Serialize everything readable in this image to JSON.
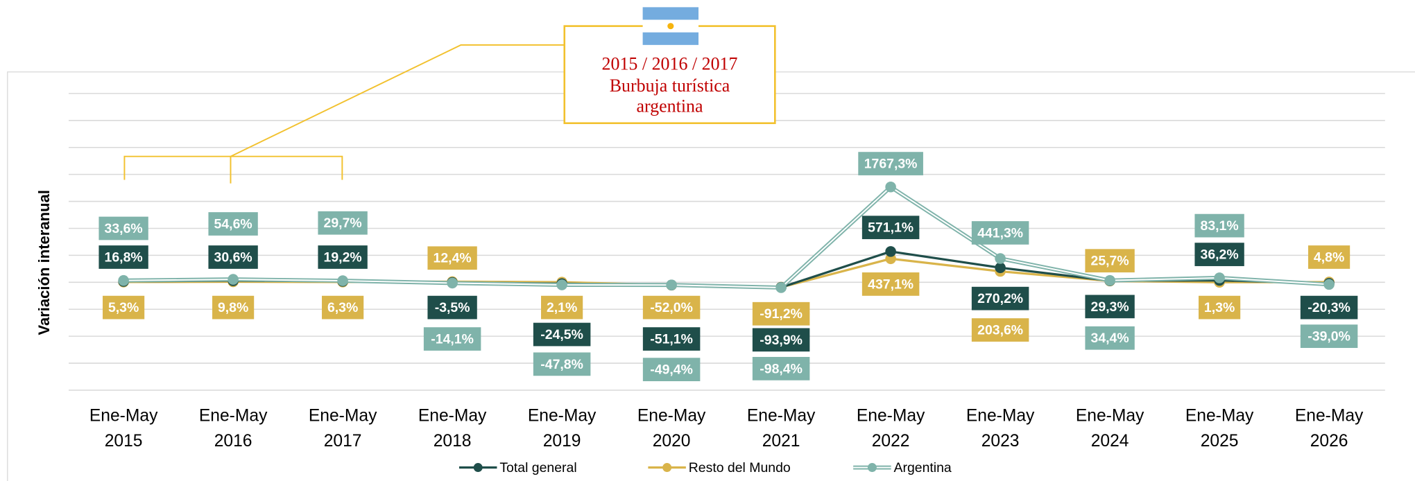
{
  "chart_data": {
    "type": "line",
    "y_label": "Variación interanual",
    "annotation": {
      "lines": [
        "2015 / 2016 / 2017",
        "Burbuja turística",
        "argentina"
      ]
    },
    "categories": [
      "Ene-May 2015",
      "Ene-May 2016",
      "Ene-May 2017",
      "Ene-May 2018",
      "Ene-May 2019",
      "Ene-May 2020",
      "Ene-May 2021",
      "Ene-May 2022",
      "Ene-May 2023",
      "Ene-May 2024",
      "Ene-May 2025",
      "Ene-May 2026"
    ],
    "series": [
      {
        "name": "Total general",
        "color": "#1f4e4a",
        "values": [
          16.8,
          30.6,
          19.2,
          -3.5,
          -24.5,
          -51.1,
          -93.9,
          571.1,
          270.2,
          29.3,
          36.2,
          -20.3
        ],
        "value_labels": [
          "16,8%",
          "30,6%",
          "19,2%",
          "-3,5%",
          "-24,5%",
          "-51,1%",
          "-93,9%",
          "571,1%",
          "270,2%",
          "29,3%",
          "36,2%",
          "-20,3%"
        ]
      },
      {
        "name": "Resto del Mundo",
        "color": "#d9b44a",
        "values": [
          5.3,
          9.8,
          6.3,
          12.4,
          2.1,
          -52.0,
          -91.2,
          437.1,
          203.6,
          25.7,
          1.3,
          4.8
        ],
        "value_labels": [
          "5,3%",
          "9,8%",
          "6,3%",
          "12,4%",
          "2,1%",
          "-52,0%",
          "-91,2%",
          "437,1%",
          "203,6%",
          "25,7%",
          "1,3%",
          "4,8%"
        ]
      },
      {
        "name": "Argentina",
        "color": "#7fb3aa",
        "values": [
          33.6,
          54.6,
          29.7,
          -14.1,
          -47.8,
          -49.4,
          -98.4,
          1767.3,
          441.3,
          34.4,
          83.1,
          -39.0
        ],
        "value_labels": [
          "33,6%",
          "54,6%",
          "29,7%",
          "-14,1%",
          "-47,8%",
          "-49,4%",
          "-98,4%",
          "1767,3%",
          "441,3%",
          "34,4%",
          "83,1%",
          "-39,0%"
        ]
      }
    ],
    "ylim": [
      -2000,
      3500
    ],
    "yticks": [
      -2000,
      -1500,
      -1000,
      -500,
      0,
      500,
      1000,
      1500,
      2000,
      2500,
      3000,
      3500
    ],
    "grid": true,
    "legend": "bottom"
  }
}
